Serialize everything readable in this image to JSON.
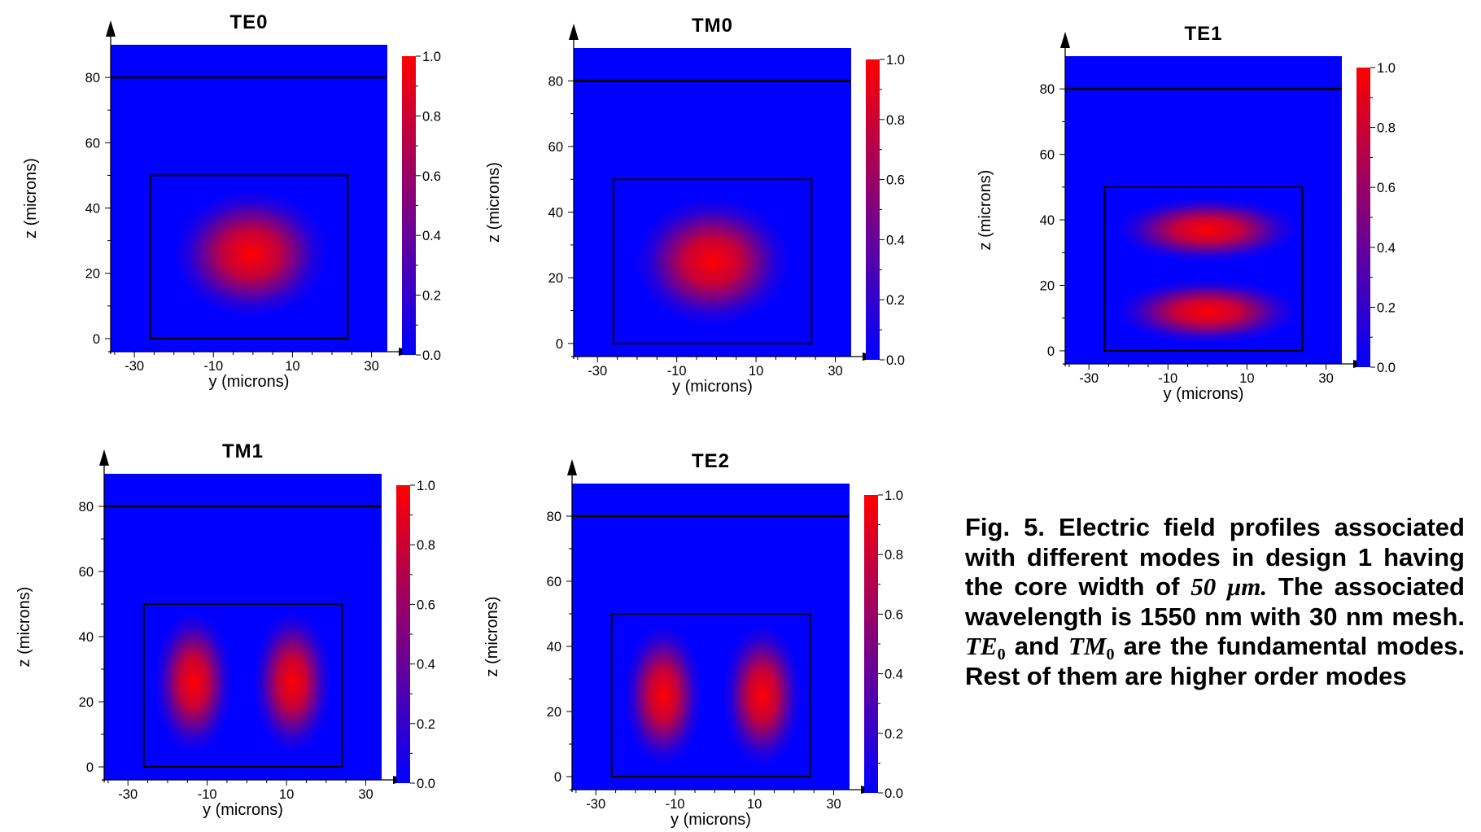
{
  "caption": {
    "lead": "Fig. 5. Electric field profiles associated with different modes in design 1 having the core width of",
    "width_value": "50",
    "width_unit": "μm.",
    "mid": "The associated wavelength is 1550 nm with 30 nm mesh.",
    "mode_a_base": "TE",
    "mode_a_sub": "0",
    "and_word": "and",
    "mode_b_base": "TM",
    "mode_b_sub": "0",
    "tail": "are the fundamental modes. Rest of them are higher order modes"
  },
  "colors": {
    "background": "#0000ff",
    "peak": "#ff0000",
    "colormap": [
      "#0000ff",
      "#ff0000"
    ],
    "outline": "#000000"
  },
  "chart_data": [
    {
      "type": "heatmap",
      "title": "TE0",
      "xlabel": "y (microns)",
      "ylabel": "z (microns)",
      "xlim": [
        -36,
        34
      ],
      "ylim": [
        -4,
        90
      ],
      "x_ticks": [
        -30,
        -10,
        10,
        30
      ],
      "y_ticks": [
        0,
        20,
        40,
        60,
        80
      ],
      "colorbar_ticks": [
        "0.0",
        "0.2",
        "0.4",
        "0.6",
        "0.8",
        "1.0"
      ],
      "colorbar_range": [
        0,
        1
      ],
      "cladding_line_z": 80,
      "core": {
        "y": [
          -26,
          24
        ],
        "z": [
          0,
          50
        ]
      },
      "lobes": [
        {
          "y": -0.5,
          "z": 26,
          "sy": 8.5,
          "sz": 8.5,
          "peak": 1.0
        }
      ]
    },
    {
      "type": "heatmap",
      "title": "TM0",
      "xlabel": "y (microns)",
      "ylabel": "z (microns)",
      "xlim": [
        -36,
        34
      ],
      "ylim": [
        -4,
        90
      ],
      "x_ticks": [
        -30,
        -10,
        10,
        30
      ],
      "y_ticks": [
        0,
        20,
        40,
        60,
        80
      ],
      "colorbar_ticks": [
        "0.0",
        "0.2",
        "0.4",
        "0.6",
        "0.8",
        "1.0"
      ],
      "colorbar_range": [
        0,
        1
      ],
      "cladding_line_z": 80,
      "core": {
        "y": [
          -26,
          24
        ],
        "z": [
          0,
          50
        ]
      },
      "lobes": [
        {
          "y": -1,
          "z": 25,
          "sy": 8.5,
          "sz": 8.5,
          "peak": 1.0
        }
      ]
    },
    {
      "type": "heatmap",
      "title": "TE1",
      "xlabel": "y (microns)",
      "ylabel": "z (microns)",
      "xlim": [
        -36,
        34
      ],
      "ylim": [
        -4,
        90
      ],
      "x_ticks": [
        -30,
        -10,
        10,
        30
      ],
      "y_ticks": [
        0,
        20,
        40,
        60,
        80
      ],
      "colorbar_ticks": [
        "0.0",
        "0.2",
        "0.4",
        "0.6",
        "0.8",
        "1.0"
      ],
      "colorbar_range": [
        0,
        1
      ],
      "cladding_line_z": 80,
      "core": {
        "y": [
          -26,
          24
        ],
        "z": [
          0,
          50
        ]
      },
      "lobes": [
        {
          "y": 0,
          "z": 37,
          "sy": 10,
          "sz": 4.3,
          "peak": 1.0
        },
        {
          "y": 0,
          "z": 12,
          "sy": 10,
          "sz": 4.3,
          "peak": 1.0
        }
      ]
    },
    {
      "type": "heatmap",
      "title": "TM1",
      "xlabel": "y (microns)",
      "ylabel": "z (microns)",
      "xlim": [
        -36,
        34
      ],
      "ylim": [
        -4,
        90
      ],
      "x_ticks": [
        -30,
        -10,
        10,
        30
      ],
      "y_ticks": [
        0,
        20,
        40,
        60,
        80
      ],
      "colorbar_ticks": [
        "0.0",
        "0.2",
        "0.4",
        "0.6",
        "0.8",
        "1.0"
      ],
      "colorbar_range": [
        0,
        1
      ],
      "cladding_line_z": 80,
      "core": {
        "y": [
          -26,
          24
        ],
        "z": [
          0,
          50
        ]
      },
      "lobes": [
        {
          "y": -13.5,
          "z": 26,
          "sy": 4.3,
          "sz": 9.5,
          "peak": 1.0
        },
        {
          "y": 11.5,
          "z": 26,
          "sy": 4.3,
          "sz": 9.5,
          "peak": 1.0
        }
      ]
    },
    {
      "type": "heatmap",
      "title": "TE2",
      "xlabel": "y (microns)",
      "ylabel": "z (microns)",
      "xlim": [
        -36,
        34
      ],
      "ylim": [
        -4,
        90
      ],
      "x_ticks": [
        -30,
        -10,
        10,
        30
      ],
      "y_ticks": [
        0,
        20,
        40,
        60,
        80
      ],
      "colorbar_ticks": [
        "0.0",
        "0.2",
        "0.4",
        "0.6",
        "0.8",
        "1.0"
      ],
      "colorbar_range": [
        0,
        1
      ],
      "cladding_line_z": 80,
      "core": {
        "y": [
          -26,
          24
        ],
        "z": [
          0,
          50
        ]
      },
      "lobes": [
        {
          "y": -13,
          "z": 25,
          "sy": 4.3,
          "sz": 9.5,
          "peak": 1.0
        },
        {
          "y": 12,
          "z": 25,
          "sy": 4.3,
          "sz": 9.5,
          "peak": 1.0
        }
      ]
    }
  ]
}
